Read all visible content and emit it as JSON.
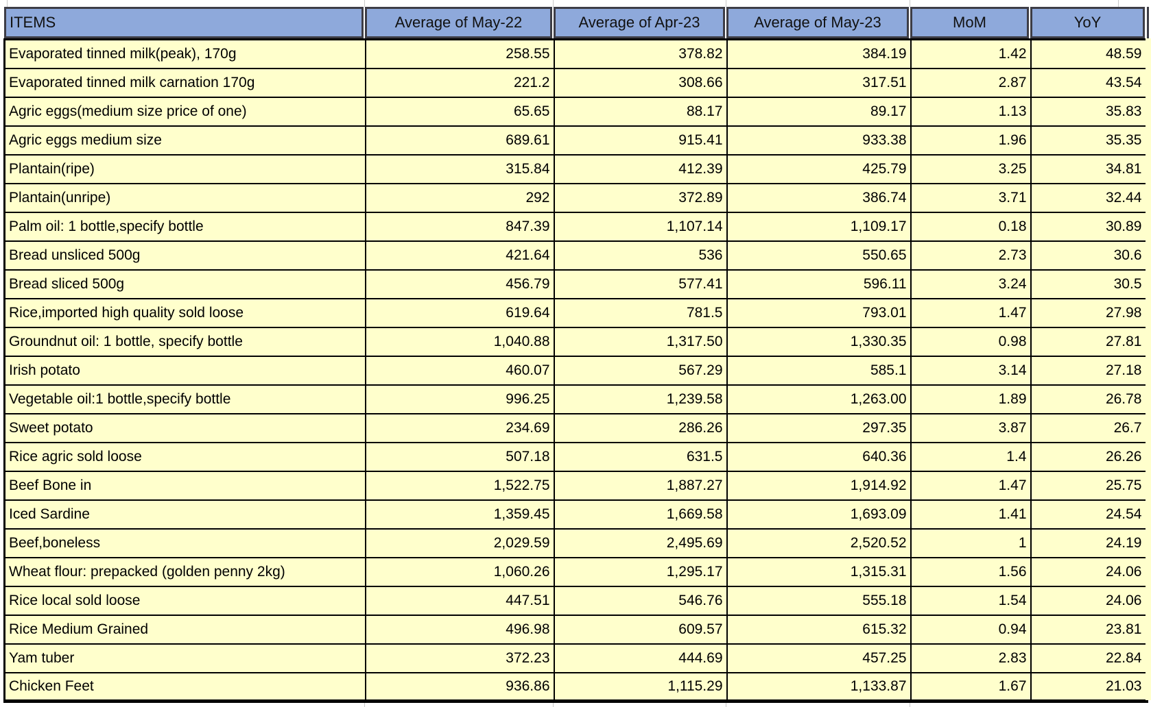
{
  "table": {
    "columns": [
      "ITEMS",
      "Average of May-22",
      "Average of Apr-23",
      "Average of May-23",
      "MoM",
      "YoY"
    ],
    "rows": [
      {
        "item": "Evaporated tinned milk(peak), 170g",
        "values": [
          "258.55",
          "378.82",
          "384.19",
          "1.42",
          "48.59"
        ]
      },
      {
        "item": "Evaporated tinned milk carnation 170g",
        "values": [
          "221.2",
          "308.66",
          "317.51",
          "2.87",
          "43.54"
        ]
      },
      {
        "item": "Agric eggs(medium size price of one)",
        "values": [
          "65.65",
          "88.17",
          "89.17",
          "1.13",
          "35.83"
        ]
      },
      {
        "item": "Agric eggs medium size",
        "values": [
          "689.61",
          "915.41",
          "933.38",
          "1.96",
          "35.35"
        ]
      },
      {
        "item": "Plantain(ripe)",
        "values": [
          "315.84",
          "412.39",
          "425.79",
          "3.25",
          "34.81"
        ]
      },
      {
        "item": "Plantain(unripe)",
        "values": [
          "292",
          "372.89",
          "386.74",
          "3.71",
          "32.44"
        ]
      },
      {
        "item": "Palm oil: 1 bottle,specify bottle",
        "values": [
          "847.39",
          "1,107.14",
          "1,109.17",
          "0.18",
          "30.89"
        ]
      },
      {
        "item": "Bread unsliced 500g",
        "values": [
          "421.64",
          "536",
          "550.65",
          "2.73",
          "30.6"
        ]
      },
      {
        "item": "Bread sliced 500g",
        "values": [
          "456.79",
          "577.41",
          "596.11",
          "3.24",
          "30.5"
        ]
      },
      {
        "item": "Rice,imported high quality sold loose",
        "values": [
          "619.64",
          "781.5",
          "793.01",
          "1.47",
          "27.98"
        ]
      },
      {
        "item": "Groundnut oil: 1 bottle, specify bottle",
        "values": [
          "1,040.88",
          "1,317.50",
          "1,330.35",
          "0.98",
          "27.81"
        ]
      },
      {
        "item": "Irish potato",
        "values": [
          "460.07",
          "567.29",
          "585.1",
          "3.14",
          "27.18"
        ]
      },
      {
        "item": "Vegetable oil:1 bottle,specify bottle",
        "values": [
          "996.25",
          "1,239.58",
          "1,263.00",
          "1.89",
          "26.78"
        ]
      },
      {
        "item": "Sweet potato",
        "values": [
          "234.69",
          "286.26",
          "297.35",
          "3.87",
          "26.7"
        ]
      },
      {
        "item": "Rice agric sold loose",
        "values": [
          "507.18",
          "631.5",
          "640.36",
          "1.4",
          "26.26"
        ]
      },
      {
        "item": "Beef Bone in",
        "values": [
          "1,522.75",
          "1,887.27",
          "1,914.92",
          "1.47",
          "25.75"
        ]
      },
      {
        "item": "Iced Sardine",
        "values": [
          "1,359.45",
          "1,669.58",
          "1,693.09",
          "1.41",
          "24.54"
        ]
      },
      {
        "item": "Beef,boneless",
        "values": [
          "2,029.59",
          "2,495.69",
          "2,520.52",
          "1",
          "24.19"
        ]
      },
      {
        "item": "Wheat flour: prepacked (golden penny 2kg)",
        "values": [
          "1,060.26",
          "1,295.17",
          "1,315.31",
          "1.56",
          "24.06"
        ]
      },
      {
        "item": "Rice local sold loose",
        "values": [
          "447.51",
          "546.76",
          "555.18",
          "1.54",
          "24.06"
        ]
      },
      {
        "item": "Rice Medium Grained",
        "values": [
          "496.98",
          "609.57",
          "615.32",
          "0.94",
          "23.81"
        ]
      },
      {
        "item": "Yam tuber",
        "values": [
          "372.23",
          "444.69",
          "457.25",
          "2.83",
          "22.84"
        ]
      },
      {
        "item": "Chicken Feet",
        "values": [
          "936.86",
          "1,115.29",
          "1,133.87",
          "1.67",
          "21.03"
        ]
      }
    ]
  },
  "colors": {
    "header_bg": "#8EA9DB",
    "header_border": "#3D3D46",
    "body_bg": "#FFFFCC",
    "body_border": "#000000",
    "gridline": "#C9C9C9"
  }
}
